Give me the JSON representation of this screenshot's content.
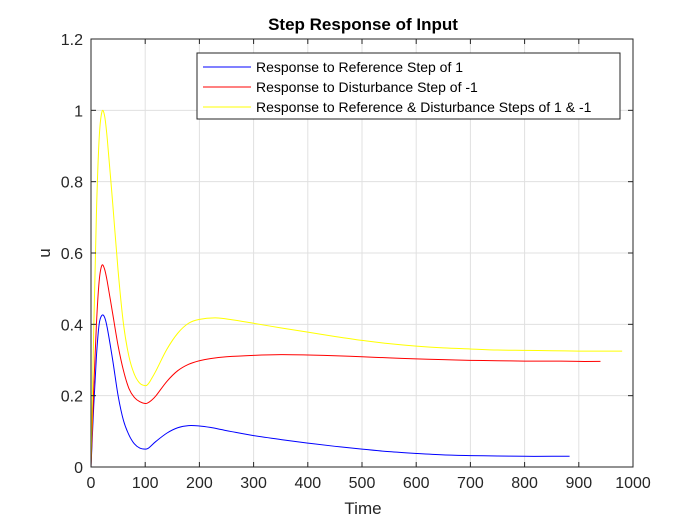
{
  "chart_data": {
    "type": "line",
    "title": "Step Response of Input",
    "xlabel": "Time",
    "ylabel": "u",
    "xlim": [
      0,
      1000
    ],
    "ylim": [
      0,
      1.2
    ],
    "xticks": [
      0,
      100,
      200,
      300,
      400,
      500,
      600,
      700,
      800,
      900,
      1000
    ],
    "yticks": [
      0,
      0.2,
      0.4,
      0.6,
      0.8,
      1,
      1.2
    ],
    "xtick_labels": [
      "0",
      "100",
      "200",
      "300",
      "400",
      "500",
      "600",
      "700",
      "800",
      "900",
      "1000"
    ],
    "ytick_labels": [
      "0",
      "0.2",
      "0.4",
      "0.6",
      "0.8",
      "1",
      "1.2"
    ],
    "grid": true,
    "legend_position": "top-right",
    "series": [
      {
        "name": "Response to Reference Step of 1",
        "color": "#0000ff",
        "x": [
          0,
          5,
          10,
          15,
          20,
          25,
          30,
          40,
          50,
          60,
          70,
          80,
          90,
          100,
          105,
          110,
          120,
          140,
          160,
          180,
          200,
          220,
          240,
          260,
          300,
          350,
          400,
          450,
          500,
          550,
          600,
          650,
          700,
          750,
          800,
          850,
          883
        ],
        "y": [
          0,
          0.17,
          0.31,
          0.4,
          0.425,
          0.42,
          0.39,
          0.3,
          0.2,
          0.13,
          0.09,
          0.065,
          0.053,
          0.05,
          0.052,
          0.058,
          0.072,
          0.095,
          0.11,
          0.116,
          0.115,
          0.111,
          0.105,
          0.099,
          0.088,
          0.077,
          0.067,
          0.058,
          0.05,
          0.043,
          0.038,
          0.034,
          0.032,
          0.031,
          0.03,
          0.03,
          0.03
        ]
      },
      {
        "name": "Response to Disturbance Step of -1",
        "color": "#ff0000",
        "x": [
          0,
          5,
          10,
          15,
          20,
          25,
          30,
          40,
          50,
          60,
          70,
          80,
          90,
          100,
          105,
          110,
          120,
          140,
          160,
          180,
          200,
          220,
          250,
          300,
          350,
          400,
          450,
          500,
          550,
          600,
          650,
          700,
          750,
          800,
          850,
          900,
          940
        ],
        "y": [
          0,
          0.22,
          0.4,
          0.52,
          0.565,
          0.555,
          0.52,
          0.43,
          0.34,
          0.27,
          0.22,
          0.195,
          0.183,
          0.178,
          0.18,
          0.185,
          0.2,
          0.24,
          0.27,
          0.288,
          0.298,
          0.304,
          0.309,
          0.313,
          0.315,
          0.314,
          0.312,
          0.309,
          0.306,
          0.303,
          0.301,
          0.299,
          0.298,
          0.297,
          0.297,
          0.296,
          0.296
        ]
      },
      {
        "name": "Response to Reference & Disturbance Steps of 1 & -1",
        "color": "#ffff00",
        "x": [
          0,
          5,
          10,
          15,
          20,
          25,
          30,
          40,
          50,
          60,
          70,
          80,
          90,
          100,
          105,
          110,
          120,
          140,
          160,
          180,
          200,
          230,
          260,
          300,
          350,
          400,
          450,
          500,
          550,
          600,
          650,
          700,
          750,
          800,
          850,
          900,
          950,
          980
        ],
        "y": [
          0,
          0.38,
          0.71,
          0.92,
          0.995,
          0.985,
          0.92,
          0.74,
          0.55,
          0.4,
          0.31,
          0.26,
          0.235,
          0.228,
          0.232,
          0.243,
          0.27,
          0.33,
          0.375,
          0.403,
          0.414,
          0.418,
          0.413,
          0.403,
          0.39,
          0.378,
          0.366,
          0.355,
          0.346,
          0.339,
          0.334,
          0.331,
          0.328,
          0.327,
          0.326,
          0.325,
          0.325,
          0.325
        ]
      }
    ]
  }
}
